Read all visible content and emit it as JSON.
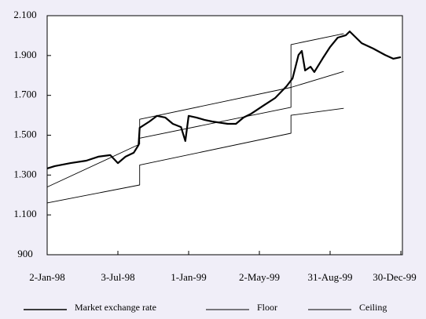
{
  "chart_data": {
    "type": "line",
    "ylim": [
      900,
      2100
    ],
    "yticks": [
      900,
      {
        "value": 1100,
        "label": "1.100"
      },
      {
        "value": 1300,
        "label": "1.300"
      },
      {
        "value": 1500,
        "label": "1.500"
      },
      {
        "value": 1700,
        "label": "1.700"
      },
      {
        "value": 1900,
        "label": "1.900"
      },
      {
        "value": 2100,
        "label": "2.100"
      }
    ],
    "xlim": [
      0,
      650
    ],
    "xticks": [
      {
        "value": 0,
        "label": "2-Jan-98"
      },
      {
        "value": 130,
        "label": "3-Jul-98"
      },
      {
        "value": 260,
        "label": "1-Jan-99"
      },
      {
        "value": 390,
        "label": "2-May-99"
      },
      {
        "value": 520,
        "label": "31-Aug-99"
      },
      {
        "value": 650,
        "label": "30-Dec-99"
      }
    ],
    "series": [
      {
        "name": "Market exchange rate",
        "color": "#000000",
        "line_width": 2.2,
        "x": [
          0,
          14,
          43,
          72,
          94,
          116,
          130,
          144,
          159,
          168,
          170,
          188,
          202,
          217,
          231,
          246,
          254,
          260,
          274,
          289,
          303,
          332,
          347,
          361,
          375,
          397,
          419,
          440,
          451,
          462,
          468,
          474,
          484,
          491,
          506,
          520,
          534,
          549,
          556,
          578,
          599,
          621,
          636,
          650
        ],
        "values": [
          1333,
          1345,
          1360,
          1372,
          1392,
          1400,
          1360,
          1392,
          1412,
          1451,
          1537,
          1569,
          1597,
          1589,
          1557,
          1541,
          1471,
          1597,
          1589,
          1577,
          1569,
          1557,
          1557,
          1589,
          1608,
          1648,
          1687,
          1746,
          1785,
          1903,
          1923,
          1825,
          1844,
          1817,
          1884,
          1943,
          1990,
          2002,
          2021,
          1962,
          1935,
          1903,
          1884,
          1892
        ]
      },
      {
        "name": "Floor",
        "color": "#000000",
        "line_width": 0.9,
        "x": [
          0,
          170,
          170,
          448,
          448,
          545
        ],
        "values": [
          1160,
          1250,
          1350,
          1510,
          1600,
          1635
        ]
      },
      {
        "name": "Ceiling",
        "color": "#000000",
        "line_width": 0.9,
        "x": [
          0,
          170,
          170,
          448,
          448,
          545
        ],
        "values": [
          1240,
          1455,
          1580,
          1740,
          1955,
          2010
        ]
      },
      {
        "color": "#000000",
        "line_width": 0.9,
        "x": [
          170,
          448,
          448,
          545
        ],
        "values": [
          1485,
          1640,
          1740,
          1820
        ]
      }
    ]
  }
}
